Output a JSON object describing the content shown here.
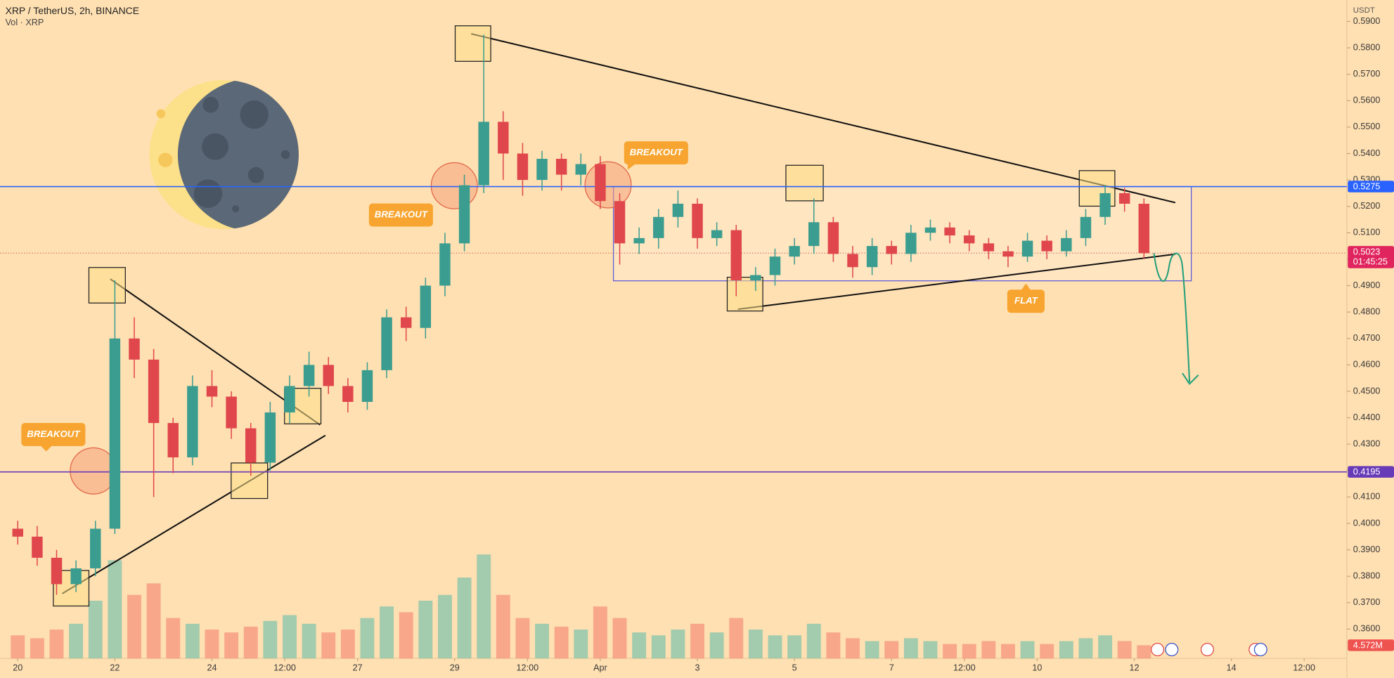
{
  "chart_data": {
    "type": "candlestick",
    "title": "XRP / TetherUS, 2h, BINANCE",
    "subtitle": "Vol · XRP",
    "y_axis_label": "USDT",
    "xlim": [
      -0.366,
      27.38
    ],
    "ylim": [
      0.3489,
      0.5981
    ],
    "yticks": [
      {
        "value": 0.36,
        "label": "0.3600"
      },
      {
        "value": 0.37,
        "label": "0.3700"
      },
      {
        "value": 0.38,
        "label": "0.3800"
      },
      {
        "value": 0.39,
        "label": "0.3900"
      },
      {
        "value": 0.4,
        "label": "0.4000"
      },
      {
        "value": 0.41,
        "label": "0.4100"
      },
      {
        "value": 0.42,
        "label": "0.4200"
      },
      {
        "value": 0.43,
        "label": "0.4300"
      },
      {
        "value": 0.44,
        "label": "0.4400"
      },
      {
        "value": 0.45,
        "label": "0.4500"
      },
      {
        "value": 0.46,
        "label": "0.4600"
      },
      {
        "value": 0.47,
        "label": "0.4700"
      },
      {
        "value": 0.48,
        "label": "0.4800"
      },
      {
        "value": 0.49,
        "label": "0.4900"
      },
      {
        "value": 0.5,
        "label": "0.5000"
      },
      {
        "value": 0.51,
        "label": "0.5100"
      },
      {
        "value": 0.52,
        "label": "0.5200"
      },
      {
        "value": 0.53,
        "label": "0.5300"
      },
      {
        "value": 0.54,
        "label": "0.5400"
      },
      {
        "value": 0.55,
        "label": "0.5500"
      },
      {
        "value": 0.56,
        "label": "0.5600"
      },
      {
        "value": 0.57,
        "label": "0.5700"
      },
      {
        "value": 0.58,
        "label": "0.5800"
      },
      {
        "value": 0.59,
        "label": "0.5900"
      }
    ],
    "xticks": [
      {
        "value": 0,
        "label": "20"
      },
      {
        "value": 2,
        "label": "22"
      },
      {
        "value": 4,
        "label": "24"
      },
      {
        "value": 5.5,
        "label": "12:00"
      },
      {
        "value": 7,
        "label": "27"
      },
      {
        "value": 9,
        "label": "29"
      },
      {
        "value": 10.5,
        "label": "12:00"
      },
      {
        "value": 12,
        "label": "Apr"
      },
      {
        "value": 14,
        "label": "3"
      },
      {
        "value": 16,
        "label": "5"
      },
      {
        "value": 18,
        "label": "7"
      },
      {
        "value": 19.5,
        "label": "12:00"
      },
      {
        "value": 21,
        "label": "10"
      },
      {
        "value": 23,
        "label": "12"
      },
      {
        "value": 25,
        "label": "14"
      },
      {
        "value": 26.5,
        "label": "12:00"
      }
    ],
    "grid": false,
    "up_color": "#3b9d8f",
    "down_color": "#e0474c",
    "volume_up_color": "#93c7ac",
    "volume_down_color": "#f79c84",
    "x": [
      0,
      0.4,
      0.8,
      1.2,
      1.6,
      2,
      2.4,
      2.8,
      3.2,
      3.6,
      4,
      4.4,
      4.8,
      5.2,
      5.6,
      6,
      6.4,
      6.8,
      7.2,
      7.6,
      8,
      8.4,
      8.8,
      9.2,
      9.6,
      10,
      10.4,
      10.8,
      11.2,
      11.6,
      12,
      12.4,
      12.8,
      13.2,
      13.6,
      14,
      14.4,
      14.8,
      15.2,
      15.6,
      16,
      16.4,
      16.8,
      17.2,
      17.6,
      18,
      18.4,
      18.8,
      19.2,
      19.6,
      20,
      20.4,
      20.8,
      21.2,
      21.6,
      22,
      22.4,
      22.8,
      23.2
    ],
    "open": [
      0.398,
      0.395,
      0.387,
      0.377,
      0.383,
      0.398,
      0.47,
      0.462,
      0.438,
      0.425,
      0.452,
      0.448,
      0.436,
      0.423,
      0.442,
      0.452,
      0.46,
      0.452,
      0.446,
      0.458,
      0.478,
      0.474,
      0.49,
      0.506,
      0.528,
      0.552,
      0.54,
      0.53,
      0.538,
      0.532,
      0.536,
      0.522,
      0.506,
      0.508,
      0.516,
      0.521,
      0.508,
      0.511,
      0.492,
      0.494,
      0.501,
      0.505,
      0.514,
      0.502,
      0.497,
      0.505,
      0.502,
      0.51,
      0.512,
      0.509,
      0.506,
      0.503,
      0.501,
      0.507,
      0.503,
      0.508,
      0.516,
      0.525,
      0.521
    ],
    "high": [
      0.401,
      0.399,
      0.39,
      0.386,
      0.401,
      0.492,
      0.478,
      0.466,
      0.44,
      0.456,
      0.458,
      0.45,
      0.438,
      0.446,
      0.456,
      0.465,
      0.463,
      0.455,
      0.461,
      0.481,
      0.482,
      0.493,
      0.51,
      0.532,
      0.585,
      0.556,
      0.544,
      0.541,
      0.54,
      0.54,
      0.539,
      0.525,
      0.512,
      0.519,
      0.526,
      0.523,
      0.514,
      0.513,
      0.497,
      0.504,
      0.508,
      0.523,
      0.516,
      0.505,
      0.508,
      0.507,
      0.513,
      0.515,
      0.514,
      0.511,
      0.508,
      0.505,
      0.51,
      0.509,
      0.511,
      0.519,
      0.528,
      0.527,
      0.523
    ],
    "low": [
      0.392,
      0.384,
      0.373,
      0.374,
      0.38,
      0.396,
      0.455,
      0.41,
      0.419,
      0.422,
      0.444,
      0.432,
      0.418,
      0.42,
      0.438,
      0.448,
      0.449,
      0.442,
      0.443,
      0.455,
      0.469,
      0.47,
      0.486,
      0.503,
      0.525,
      0.53,
      0.524,
      0.526,
      0.526,
      0.528,
      0.519,
      0.498,
      0.502,
      0.504,
      0.512,
      0.504,
      0.505,
      0.486,
      0.488,
      0.49,
      0.498,
      0.502,
      0.499,
      0.493,
      0.494,
      0.498,
      0.499,
      0.507,
      0.506,
      0.503,
      0.5,
      0.497,
      0.499,
      0.5,
      0.501,
      0.505,
      0.513,
      0.518,
      0.5
    ],
    "close": [
      0.395,
      0.387,
      0.377,
      0.383,
      0.398,
      0.47,
      0.462,
      0.438,
      0.425,
      0.452,
      0.448,
      0.436,
      0.423,
      0.442,
      0.452,
      0.46,
      0.452,
      0.446,
      0.458,
      0.478,
      0.474,
      0.49,
      0.506,
      0.528,
      0.552,
      0.54,
      0.53,
      0.538,
      0.532,
      0.536,
      0.522,
      0.506,
      0.508,
      0.516,
      0.521,
      0.508,
      0.511,
      0.492,
      0.494,
      0.501,
      0.505,
      0.514,
      0.502,
      0.497,
      0.505,
      0.502,
      0.51,
      0.512,
      0.509,
      0.506,
      0.503,
      0.501,
      0.507,
      0.503,
      0.508,
      0.516,
      0.525,
      0.521,
      0.5023
    ],
    "volume_lim": [
      0,
      40
    ],
    "volume": [
      8,
      7,
      10,
      12,
      20,
      34,
      22,
      26,
      14,
      12,
      10,
      9,
      11,
      13,
      15,
      12,
      9,
      10,
      14,
      18,
      16,
      20,
      22,
      28,
      36,
      22,
      14,
      12,
      11,
      10,
      18,
      14,
      9,
      8,
      10,
      12,
      9,
      14,
      10,
      8,
      8,
      12,
      9,
      7,
      6,
      6,
      7,
      6,
      5,
      5,
      6,
      5,
      6,
      5,
      6,
      7,
      8,
      6,
      4.572
    ],
    "levels": [
      {
        "value": 0.5275,
        "label": "0.5275",
        "color": "#2962ff"
      },
      {
        "value": 0.4195,
        "label": "0.4195",
        "color": "#673ab7"
      }
    ],
    "last_price": {
      "value": 0.5023,
      "label": "0.5023"
    },
    "countdown": "01:45:25",
    "last_volume": {
      "value": 4.572,
      "label": "4.572M"
    },
    "annotations": [
      "BREAKOUT",
      "BREAKOUT",
      "BREAKOUT",
      "FLAT"
    ]
  }
}
